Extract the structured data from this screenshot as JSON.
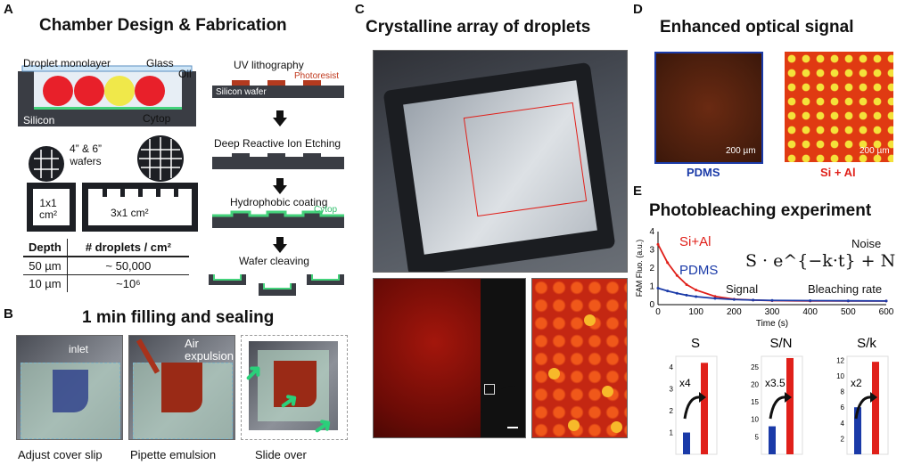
{
  "panelA": {
    "label": "A",
    "title": "Chamber Design & Fabrication",
    "labels": {
      "droplet_monolayer": "Droplet monolayer",
      "glass": "Glass",
      "oil": "Oil",
      "silicon": "Silicon",
      "cytop": "Cytop",
      "wafers": "4” & 6”\nwafers",
      "chip1": "1x1\ncm²",
      "chip2": "3x1 cm²"
    },
    "table": {
      "headers": [
        "Depth",
        "# droplets / cm²"
      ],
      "rows": [
        [
          "50 µm",
          "~ 50,000"
        ],
        [
          "10 µm",
          "~10⁶"
        ]
      ]
    },
    "process": {
      "uv": "UV lithography",
      "photoresist": "Photoresist",
      "silicon_wafer": "Silicon wafer",
      "drie": "Deep Reactive Ion Etching",
      "hydrophobic": "Hydrophobic coating",
      "cytop": "Cytop",
      "cleaving": "Wafer cleaving"
    }
  },
  "panelB": {
    "label": "B",
    "title": "1 min filling and sealing",
    "steps": [
      {
        "caption": "Adjust cover slip",
        "overlay": "inlet"
      },
      {
        "caption": "Pipette emulsion",
        "overlay": "Air\nexpulsion"
      },
      {
        "caption": "Slide over",
        "overlay": ""
      }
    ]
  },
  "panelC": {
    "label": "C",
    "title": "Crystalline array of droplets"
  },
  "panelD": {
    "label": "D",
    "title": "Enhanced optical signal",
    "left_caption": "PDMS",
    "right_caption": "Si + Al",
    "scale_left": "200 µm",
    "scale_right": "200 µm",
    "colors": {
      "pdms": "#1a3aa8",
      "sial": "#e0201a"
    }
  },
  "panelE": {
    "label": "E",
    "title": "Photobleaching experiment",
    "formula": "S · e^{−k·t} + N",
    "annotations": {
      "noise": "Noise",
      "signal": "Signal",
      "bleaching": "Bleaching rate"
    },
    "legend": [
      "Si+Al",
      "PDMS"
    ],
    "bars": [
      {
        "title": "S",
        "mult": "x4",
        "yticks": [
          "1",
          "2",
          "3",
          "4"
        ],
        "ymax": 4.5,
        "pdms": 1.0,
        "sial": 4.2
      },
      {
        "title": "S/N",
        "mult": "x3.5",
        "yticks": [
          "5",
          "10",
          "15",
          "20",
          "25"
        ],
        "ymax": 28,
        "pdms": 8,
        "sial": 27.5
      },
      {
        "title": "S/k",
        "mult": "x2",
        "yticks": [
          "2",
          "4",
          "6",
          "8",
          "10",
          "12"
        ],
        "ymax": 12.5,
        "pdms": 6,
        "sial": 11.8
      }
    ]
  },
  "chart_data": {
    "type": "line",
    "xlabel": "Time (s)",
    "ylabel": "FAM Fluo. (a.u.)",
    "xlim": [
      0,
      600
    ],
    "ylim": [
      0,
      4
    ],
    "x_ticks": [
      "0",
      "100",
      "200",
      "300",
      "400",
      "500",
      "600"
    ],
    "y_ticks": [
      "0",
      "1",
      "2",
      "3",
      "4"
    ],
    "x": [
      0,
      25,
      50,
      75,
      100,
      150,
      200,
      250,
      300,
      400,
      500,
      600
    ],
    "series": [
      {
        "name": "Si+Al",
        "color": "#e0201a",
        "values": [
          3.3,
          2.3,
          1.6,
          1.1,
          0.8,
          0.45,
          0.3,
          0.25,
          0.22,
          0.2,
          0.2,
          0.2
        ]
      },
      {
        "name": "PDMS",
        "color": "#1a3aa8",
        "values": [
          0.9,
          0.75,
          0.62,
          0.52,
          0.44,
          0.34,
          0.28,
          0.25,
          0.23,
          0.22,
          0.21,
          0.2
        ]
      }
    ]
  }
}
